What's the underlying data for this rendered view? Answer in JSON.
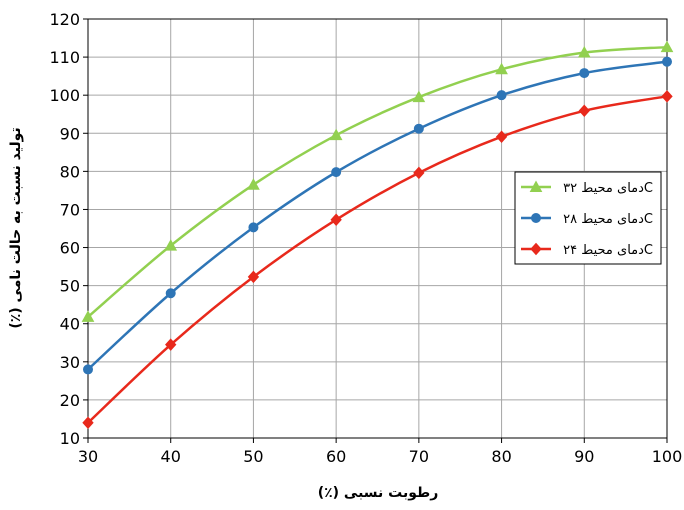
{
  "chart_data": {
    "type": "line",
    "title": "",
    "xlabel": "رطوبت نسبی (٪)",
    "ylabel": "تولید نسبت به حالت نامی (٪)",
    "x": [
      30,
      40,
      50,
      60,
      70,
      80,
      90,
      100
    ],
    "xlim": [
      30,
      100
    ],
    "ylim": [
      10,
      120
    ],
    "xticks": [
      "30",
      "40",
      "50",
      "60",
      "70",
      "80",
      "90",
      "100"
    ],
    "yticks": [
      "10",
      "20",
      "30",
      "40",
      "50",
      "60",
      "70",
      "80",
      "90",
      "100",
      "110",
      "120"
    ],
    "grid": true,
    "legend_position": "right",
    "series": [
      {
        "name": "دمای محیط ۳۲C",
        "color": "#92D050",
        "marker": "triangle",
        "values": [
          41.8,
          60.5,
          76.5,
          89.5,
          99.5,
          106.8,
          111.2,
          112.6
        ]
      },
      {
        "name": "دمای محیط ۲۸C",
        "color": "#2E75B6",
        "marker": "circle",
        "values": [
          28.0,
          48.0,
          65.3,
          79.8,
          91.2,
          100.0,
          105.8,
          108.8
        ]
      },
      {
        "name": "دمای محیط ۲۴C",
        "color": "#E8291C",
        "marker": "diamond",
        "values": [
          14.0,
          34.5,
          52.3,
          67.3,
          79.6,
          89.1,
          95.9,
          99.7
        ]
      }
    ]
  }
}
